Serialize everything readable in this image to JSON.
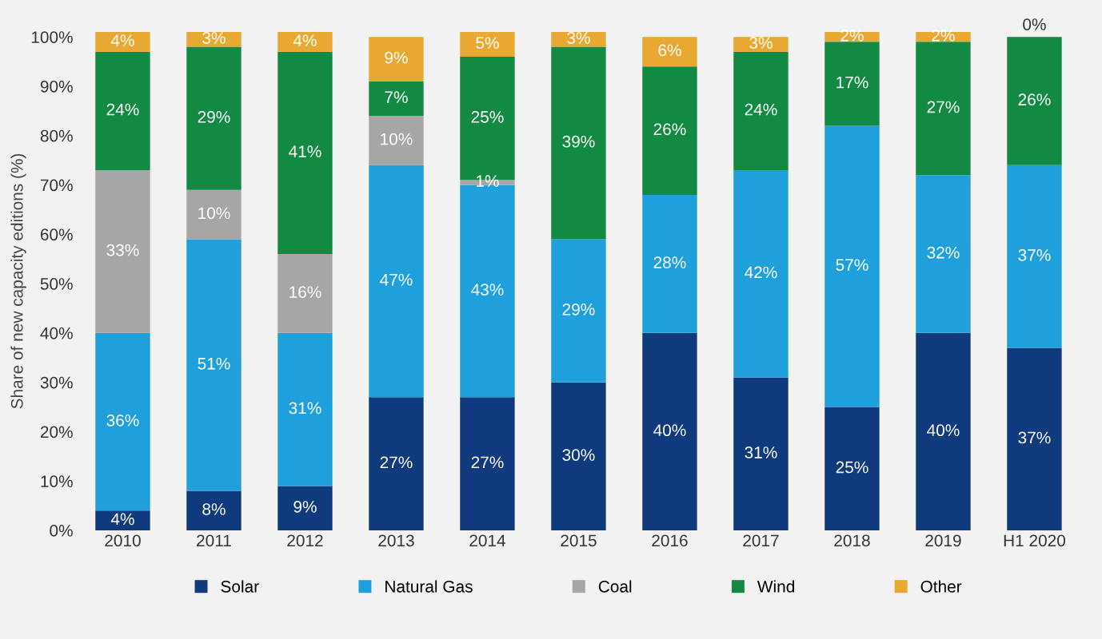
{
  "chart_data": {
    "type": "bar",
    "stacked": true,
    "ylabel": "Share of new capacity editions (%)",
    "categories": [
      "2010",
      "2011",
      "2012",
      "2013",
      "2014",
      "2015",
      "2016",
      "2017",
      "2018",
      "2019",
      "H1 2020"
    ],
    "series": [
      {
        "name": "Solar",
        "color": "#0f3a7d",
        "values": [
          4,
          8,
          9,
          27,
          27,
          30,
          40,
          31,
          25,
          40,
          37
        ],
        "value_labels": [
          "4%",
          "8%",
          "9%",
          "27%",
          "27%",
          "30%",
          "40%",
          "31%",
          "25%",
          "40%",
          "37%"
        ]
      },
      {
        "name": "Natural Gas",
        "color": "#1fa0dc",
        "values": [
          36,
          51,
          31,
          47,
          43,
          29,
          28,
          42,
          57,
          32,
          37
        ],
        "value_labels": [
          "36%",
          "51%",
          "31%",
          "47%",
          "43%",
          "29%",
          "28%",
          "42%",
          "57%",
          "32%",
          "37%"
        ]
      },
      {
        "name": "Coal",
        "color": "#a6a6a6",
        "values": [
          33,
          10,
          16,
          10,
          1,
          0,
          0,
          0,
          0,
          0,
          0
        ],
        "value_labels": [
          "33%",
          "10%",
          "16%",
          "10%",
          "1%",
          null,
          null,
          null,
          null,
          null,
          null
        ]
      },
      {
        "name": "Wind",
        "color": "#138a43",
        "values": [
          24,
          29,
          41,
          7,
          25,
          39,
          26,
          24,
          17,
          27,
          26
        ],
        "value_labels": [
          "24%",
          "29%",
          "41%",
          "7%",
          "25%",
          "39%",
          "26%",
          "24%",
          "17%",
          "27%",
          "26%"
        ]
      },
      {
        "name": "Other",
        "color": "#e8a831",
        "values": [
          4,
          3,
          4,
          9,
          5,
          3,
          6,
          3,
          2,
          2,
          0
        ],
        "value_labels": [
          "4%",
          "3%",
          "4%",
          "9%",
          "5%",
          "3%",
          "6%",
          "3%",
          "2%",
          "2%",
          "0%"
        ]
      }
    ],
    "ylim": [
      0,
      101
    ],
    "yticks": [
      {
        "value": 0,
        "label": "0%"
      },
      {
        "value": 10,
        "label": "10%"
      },
      {
        "value": 20,
        "label": "20%"
      },
      {
        "value": 30,
        "label": "30%"
      },
      {
        "value": 40,
        "label": "40%"
      },
      {
        "value": 50,
        "label": "50%"
      },
      {
        "value": 60,
        "label": "60%"
      },
      {
        "value": 70,
        "label": "70%"
      },
      {
        "value": 80,
        "label": "80%"
      },
      {
        "value": 90,
        "label": "90%"
      },
      {
        "value": 100,
        "label": "100%"
      }
    ],
    "grid": false,
    "legend": "bottom"
  }
}
